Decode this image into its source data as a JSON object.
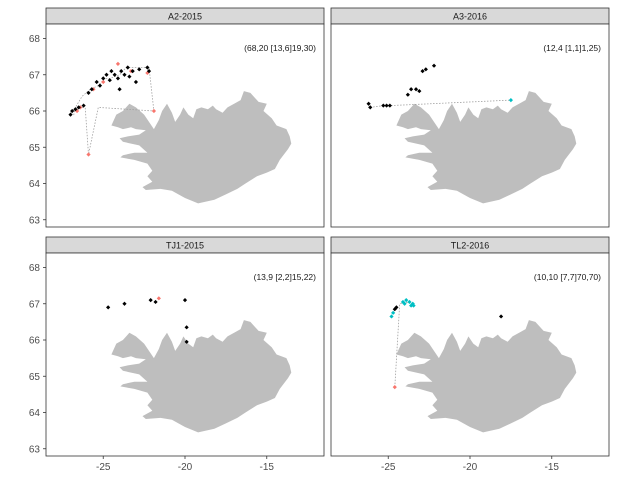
{
  "chart_data": {
    "type": "scatter",
    "facets": [
      "A2-2015",
      "A3-2016",
      "TJ1-2015",
      "TL2-2016"
    ],
    "xlabel": "",
    "ylabel": "",
    "xlim": [
      -28.5,
      -11.5
    ],
    "ylim": [
      62.8,
      68.4
    ],
    "x_ticks": [
      -25,
      -20,
      -15
    ],
    "x_tick_labels": [
      "-25",
      "-20",
      "-15"
    ],
    "y_ticks": [
      63,
      64,
      65,
      66,
      67,
      68
    ],
    "y_tick_labels": [
      "63",
      "64",
      "65",
      "66",
      "67",
      "68"
    ],
    "grid": false,
    "legend": "none",
    "colors": {
      "land": "#bebebe",
      "black_points": "#000000",
      "red_points": "#f8766d",
      "cyan_points": "#00bfc4",
      "dotted_line": "#a0a0a0",
      "strip_fill": "#d9d9d9",
      "panel_border": "#333333"
    },
    "panels": [
      {
        "name": "A2-2015",
        "annotation": "(68,20 [13,6]19,30)",
        "path": [
          [
            -26.2,
            66.1
          ],
          [
            -27.0,
            66.0
          ],
          [
            -26.8,
            65.9
          ],
          [
            -26.7,
            66.1
          ],
          [
            -26.3,
            66.4
          ],
          [
            -25.8,
            66.6
          ],
          [
            -25.3,
            66.7
          ],
          [
            -24.9,
            66.9
          ],
          [
            -24.6,
            66.9
          ],
          [
            -24.0,
            67.0
          ],
          [
            -23.6,
            67.2
          ],
          [
            -22.2,
            67.2
          ],
          [
            -21.9,
            66.0
          ],
          [
            -25.3,
            66.1
          ],
          [
            -25.9,
            64.8
          ],
          [
            -26.1,
            66.1
          ]
        ],
        "points": [
          {
            "x": -27.0,
            "y": 65.9,
            "c": "black"
          },
          {
            "x": -26.9,
            "y": 66.0,
            "c": "black"
          },
          {
            "x": -26.7,
            "y": 66.05,
            "c": "black"
          },
          {
            "x": -26.5,
            "y": 66.1,
            "c": "black"
          },
          {
            "x": -26.2,
            "y": 66.15,
            "c": "black"
          },
          {
            "x": -25.9,
            "y": 66.5,
            "c": "black"
          },
          {
            "x": -25.7,
            "y": 66.6,
            "c": "black"
          },
          {
            "x": -25.4,
            "y": 66.8,
            "c": "black"
          },
          {
            "x": -25.2,
            "y": 66.7,
            "c": "black"
          },
          {
            "x": -25.0,
            "y": 66.9,
            "c": "black"
          },
          {
            "x": -24.8,
            "y": 67.0,
            "c": "black"
          },
          {
            "x": -24.5,
            "y": 67.1,
            "c": "black"
          },
          {
            "x": -24.3,
            "y": 67.0,
            "c": "black"
          },
          {
            "x": -24.1,
            "y": 66.9,
            "c": "black"
          },
          {
            "x": -23.9,
            "y": 67.1,
            "c": "black"
          },
          {
            "x": -23.7,
            "y": 67.0,
            "c": "black"
          },
          {
            "x": -23.5,
            "y": 67.2,
            "c": "black"
          },
          {
            "x": -23.4,
            "y": 66.95,
            "c": "black"
          },
          {
            "x": -23.2,
            "y": 67.1,
            "c": "black"
          },
          {
            "x": -23.0,
            "y": 66.8,
            "c": "black"
          },
          {
            "x": -22.8,
            "y": 67.15,
            "c": "black"
          },
          {
            "x": -24.0,
            "y": 66.6,
            "c": "black"
          },
          {
            "x": -22.3,
            "y": 67.2,
            "c": "black"
          },
          {
            "x": -22.2,
            "y": 67.1,
            "c": "black"
          },
          {
            "x": -24.6,
            "y": 66.85,
            "c": "black"
          },
          {
            "x": -26.6,
            "y": 66.0,
            "c": "red"
          },
          {
            "x": -26.4,
            "y": 66.1,
            "c": "red"
          },
          {
            "x": -25.6,
            "y": 66.6,
            "c": "red"
          },
          {
            "x": -25.0,
            "y": 66.8,
            "c": "red"
          },
          {
            "x": -24.1,
            "y": 67.3,
            "c": "red"
          },
          {
            "x": -23.3,
            "y": 67.1,
            "c": "red"
          },
          {
            "x": -22.3,
            "y": 67.05,
            "c": "red"
          },
          {
            "x": -21.9,
            "y": 66.0,
            "c": "red"
          },
          {
            "x": -25.9,
            "y": 64.8,
            "c": "red"
          }
        ]
      },
      {
        "name": "A3-2016",
        "annotation": "(12,4 [1,1]1,25)",
        "path": [
          [
            -26.1,
            66.1
          ],
          [
            -25.3,
            66.15
          ],
          [
            -24.9,
            66.15
          ],
          [
            -17.5,
            66.3
          ]
        ],
        "points": [
          {
            "x": -26.2,
            "y": 66.2,
            "c": "black"
          },
          {
            "x": -26.1,
            "y": 66.1,
            "c": "black"
          },
          {
            "x": -25.3,
            "y": 66.15,
            "c": "black"
          },
          {
            "x": -25.1,
            "y": 66.15,
            "c": "black"
          },
          {
            "x": -24.9,
            "y": 66.15,
            "c": "black"
          },
          {
            "x": -23.8,
            "y": 66.45,
            "c": "black"
          },
          {
            "x": -23.6,
            "y": 66.6,
            "c": "black"
          },
          {
            "x": -23.3,
            "y": 66.6,
            "c": "black"
          },
          {
            "x": -23.1,
            "y": 66.55,
            "c": "black"
          },
          {
            "x": -22.9,
            "y": 67.1,
            "c": "black"
          },
          {
            "x": -22.7,
            "y": 67.15,
            "c": "black"
          },
          {
            "x": -22.2,
            "y": 67.25,
            "c": "black"
          },
          {
            "x": -17.5,
            "y": 66.3,
            "c": "cyan"
          }
        ]
      },
      {
        "name": "TJ1-2015",
        "annotation": "(13,9 [2,2]15,22)",
        "path": [],
        "points": [
          {
            "x": -24.7,
            "y": 66.9,
            "c": "black"
          },
          {
            "x": -23.7,
            "y": 67.0,
            "c": "black"
          },
          {
            "x": -22.1,
            "y": 67.1,
            "c": "black"
          },
          {
            "x": -21.8,
            "y": 67.05,
            "c": "black"
          },
          {
            "x": -20.0,
            "y": 67.1,
            "c": "black"
          },
          {
            "x": -19.9,
            "y": 66.35,
            "c": "black"
          },
          {
            "x": -19.9,
            "y": 65.95,
            "c": "black"
          },
          {
            "x": -21.6,
            "y": 67.15,
            "c": "red"
          }
        ]
      },
      {
        "name": "TL2-2016",
        "annotation": "(10,10 [7,7]70,70)",
        "path": [
          [
            -24.6,
            64.7
          ],
          [
            -24.3,
            67.0
          ],
          [
            -23.7,
            67.05
          ],
          [
            -23.5,
            66.95
          ]
        ],
        "points": [
          {
            "x": -24.6,
            "y": 66.85,
            "c": "black"
          },
          {
            "x": -24.5,
            "y": 66.9,
            "c": "black"
          },
          {
            "x": -18.1,
            "y": 66.65,
            "c": "black"
          },
          {
            "x": -24.8,
            "y": 66.65,
            "c": "cyan"
          },
          {
            "x": -24.7,
            "y": 66.75,
            "c": "cyan"
          },
          {
            "x": -24.1,
            "y": 67.05,
            "c": "cyan"
          },
          {
            "x": -24.0,
            "y": 67.0,
            "c": "cyan"
          },
          {
            "x": -23.9,
            "y": 67.1,
            "c": "cyan"
          },
          {
            "x": -23.7,
            "y": 67.05,
            "c": "cyan"
          },
          {
            "x": -23.6,
            "y": 66.95,
            "c": "cyan"
          },
          {
            "x": -23.5,
            "y": 67.0,
            "c": "cyan"
          },
          {
            "x": -23.45,
            "y": 66.95,
            "c": "cyan"
          },
          {
            "x": -24.6,
            "y": 64.7,
            "c": "red"
          }
        ]
      }
    ]
  }
}
